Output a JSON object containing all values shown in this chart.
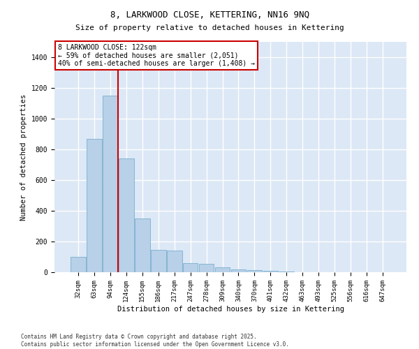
{
  "title": "8, LARKWOOD CLOSE, KETTERING, NN16 9NQ",
  "subtitle": "Size of property relative to detached houses in Kettering",
  "xlabel": "Distribution of detached houses by size in Kettering",
  "ylabel": "Number of detached properties",
  "categories": [
    "32sqm",
    "63sqm",
    "94sqm",
    "124sqm",
    "155sqm",
    "186sqm",
    "217sqm",
    "247sqm",
    "278sqm",
    "309sqm",
    "340sqm",
    "370sqm",
    "401sqm",
    "432sqm",
    "463sqm",
    "493sqm",
    "525sqm",
    "556sqm",
    "616sqm",
    "647sqm"
  ],
  "values": [
    100,
    870,
    1150,
    740,
    350,
    145,
    140,
    60,
    55,
    30,
    20,
    15,
    10,
    5,
    0,
    0,
    0,
    0,
    0,
    0
  ],
  "bar_color": "#b8d0e8",
  "bar_edge_color": "#7aafd0",
  "bg_color": "#dce8f5",
  "grid_color": "#ffffff",
  "vline_color": "#cc0000",
  "annotation_text": "8 LARKWOOD CLOSE: 122sqm\n← 59% of detached houses are smaller (2,051)\n40% of semi-detached houses are larger (1,408) →",
  "annotation_box_color": "#cc0000",
  "footnote1": "Contains HM Land Registry data © Crown copyright and database right 2025.",
  "footnote2": "Contains public sector information licensed under the Open Government Licence v3.0.",
  "ylim": [
    0,
    1500
  ],
  "yticks": [
    0,
    200,
    400,
    600,
    800,
    1000,
    1200,
    1400
  ]
}
